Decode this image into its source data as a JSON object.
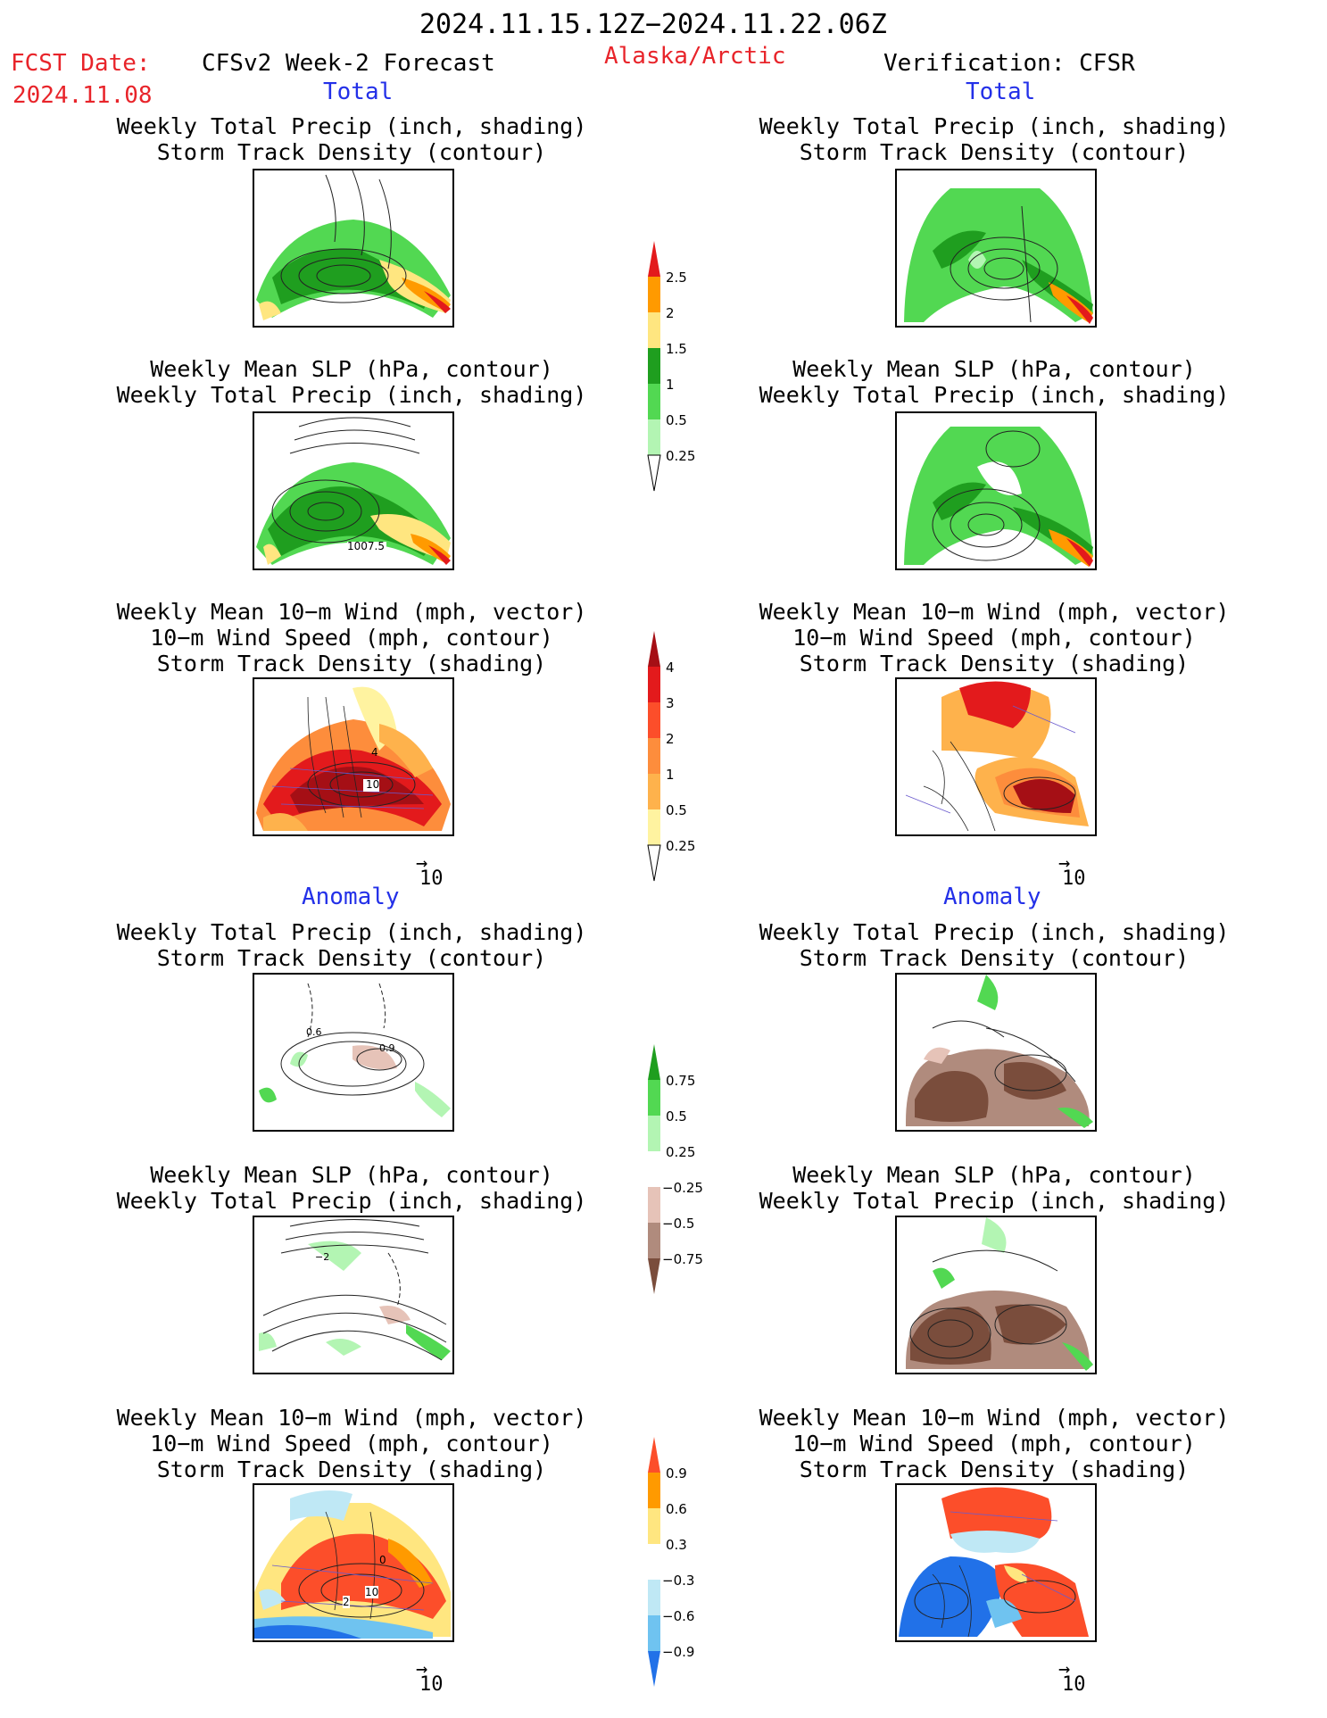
{
  "header": {
    "period": "2024.11.15.12Z−2024.11.22.06Z",
    "fcst_label": "FCST Date:",
    "fcst_date": "2024.11.08",
    "model": "CFSv2 Week-2 Forecast",
    "region": "Alaska/Arctic",
    "verification": "Verification: CFSR"
  },
  "sections": {
    "total_left": "Total",
    "total_right": "Total",
    "anomaly_left": "Anomaly",
    "anomaly_right": "Anomaly"
  },
  "titles": {
    "precip_storm_1": "Weekly Total Precip (inch, shading)",
    "precip_storm_2": "Storm Track Density (contour)",
    "slp_precip_1": "Weekly Mean SLP (hPa, contour)",
    "slp_precip_2": "Weekly Total Precip (inch, shading)",
    "wind_1": "Weekly Mean 10−m Wind (mph, vector)",
    "wind_2": "10−m Wind Speed (mph, contour)",
    "wind_3": "Storm Track Density (shading)"
  },
  "panel_labels": {
    "slp_total_contour": "1007.5",
    "wind_total_contour": "10",
    "wind_total_contour2": "4",
    "anom_precip_contour1": "0.6",
    "anom_precip_contour2": "0.9",
    "anom_slp_contour": "−2",
    "anom_wind_contour": "10",
    "anom_wind_contour2": "2",
    "anom_wind_contour3": "0"
  },
  "vector_ref": "10",
  "colorbars": {
    "precip_total": {
      "labels": [
        "2.5",
        "2",
        "1.5",
        "1",
        "0.5",
        "0.25"
      ],
      "colors": [
        "#e31a1c",
        "#ff9a00",
        "#ffe680",
        "#1f9e1f",
        "#52d852",
        "#b3f5b3"
      ]
    },
    "storm_total": {
      "labels": [
        "4",
        "3",
        "2",
        "1",
        "0.5",
        "0.25"
      ],
      "colors": [
        "#a50f15",
        "#e31a1c",
        "#fc4e2a",
        "#fd8d3c",
        "#feb24c",
        "#fff3a0"
      ]
    },
    "precip_anom": {
      "labels": [
        "0.75",
        "0.5",
        "0.25",
        "−0.25",
        "−0.5",
        "−0.75"
      ],
      "colors": [
        "#1f9e1f",
        "#52d852",
        "#b3f5b3",
        "#ffffff",
        "#e6c3b8",
        "#b08b7d",
        "#7a4d3c"
      ]
    },
    "storm_anom": {
      "labels": [
        "0.9",
        "0.6",
        "0.3",
        "−0.3",
        "−0.6",
        "−0.9"
      ],
      "colors": [
        "#fc4e2a",
        "#ff9a00",
        "#ffe680",
        "#ffffff",
        "#bfe8f5",
        "#6fc3f0",
        "#2171e8"
      ]
    }
  }
}
